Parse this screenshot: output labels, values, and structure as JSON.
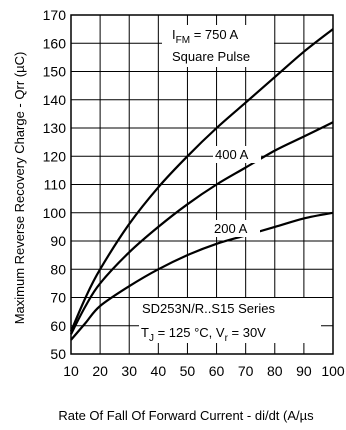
{
  "chart_data": {
    "type": "line",
    "xlabel": "Rate Of Fall Of Forward Current - di/dt (A/µs",
    "ylabel": "Maximum Reverse Recovery Charge - Qrr (µC)",
    "xlim": [
      10,
      100
    ],
    "ylim": [
      50,
      170
    ],
    "x_ticks": [
      "10",
      "20",
      "30",
      "40",
      "50",
      "60",
      "70",
      "80",
      "90",
      "100"
    ],
    "y_ticks": [
      "50",
      "60",
      "70",
      "80",
      "90",
      "100",
      "110",
      "120",
      "130",
      "140",
      "150",
      "160",
      "170"
    ],
    "grid": true,
    "series": [
      {
        "name": "750 A",
        "x": [
          10,
          15,
          20,
          30,
          40,
          50,
          60,
          70,
          80,
          90,
          100
        ],
        "y": [
          58,
          70,
          80,
          96,
          109,
          120,
          130,
          139,
          148,
          157,
          165
        ]
      },
      {
        "name": "400 A",
        "x": [
          10,
          15,
          20,
          30,
          40,
          50,
          60,
          70,
          80,
          90,
          100
        ],
        "y": [
          57,
          67,
          75,
          86,
          95,
          103,
          110,
          116,
          122,
          127,
          132
        ]
      },
      {
        "name": "200 A",
        "x": [
          10,
          15,
          20,
          30,
          40,
          50,
          60,
          70,
          80,
          90,
          100
        ],
        "y": [
          55,
          61,
          67,
          74,
          80,
          85,
          89,
          92,
          95,
          98,
          100
        ]
      }
    ],
    "annotations": {
      "curve_750_prefix": "I",
      "curve_750_sub": "FM",
      "curve_750_suffix": " = 750 A",
      "pulse": "Square Pulse",
      "curve_400": "400 A",
      "curve_200": "200 A",
      "series_name": "SD253N/R..S15 Series",
      "cond_t_prefix": "T",
      "cond_t_sub": "J",
      "cond_t_suffix": " = 125 °C, V",
      "cond_v_sub": "r",
      "cond_v_suffix": " = 30V"
    }
  }
}
